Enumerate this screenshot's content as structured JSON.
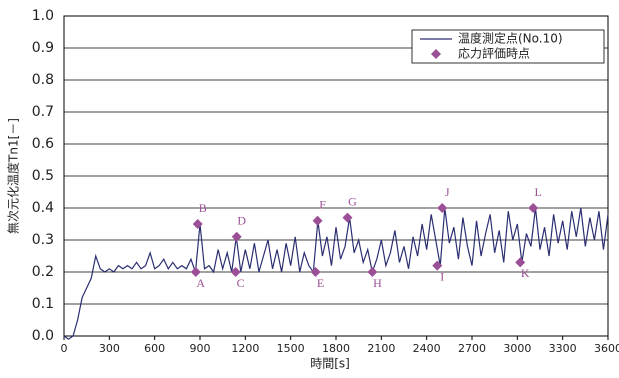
{
  "chart_data": {
    "type": "line",
    "xlabel": "時間[s]",
    "ylabel": "無次元化温度Tn1[－]",
    "xlim": [
      0,
      3600
    ],
    "xticks": [
      0,
      300,
      600,
      900,
      1200,
      1500,
      1800,
      2100,
      2400,
      2700,
      3000,
      3300,
      3600
    ],
    "ylim": [
      0,
      1
    ],
    "yticks": [
      {
        "value": 0,
        "label": "0.0"
      },
      0.1,
      0.2,
      0.3,
      0.4,
      0.5,
      0.6,
      0.7,
      0.8,
      0.9,
      {
        "value": 1,
        "label": "1.0"
      }
    ],
    "grid": true,
    "legend": "upper right",
    "series": [
      {
        "name": "温度測定点(No.10)",
        "color": "#2b2f72",
        "x": [
          0,
          30,
          60,
          90,
          120,
          150,
          180,
          210,
          240,
          270,
          300,
          330,
          360,
          390,
          420,
          450,
          480,
          510,
          540,
          570,
          600,
          630,
          660,
          690,
          720,
          750,
          780,
          810,
          840,
          870,
          900,
          930,
          960,
          990,
          1020,
          1050,
          1080,
          1110,
          1140,
          1170,
          1200,
          1230,
          1260,
          1290,
          1320,
          1350,
          1380,
          1410,
          1440,
          1470,
          1500,
          1530,
          1560,
          1590,
          1620,
          1650,
          1680,
          1710,
          1740,
          1770,
          1800,
          1830,
          1860,
          1890,
          1920,
          1950,
          1980,
          2010,
          2040,
          2070,
          2100,
          2130,
          2160,
          2190,
          2220,
          2250,
          2280,
          2310,
          2340,
          2370,
          2400,
          2430,
          2460,
          2490,
          2520,
          2550,
          2580,
          2610,
          2640,
          2670,
          2700,
          2730,
          2760,
          2790,
          2820,
          2850,
          2880,
          2910,
          2940,
          2970,
          3000,
          3030,
          3060,
          3090,
          3120,
          3150,
          3180,
          3210,
          3240,
          3270,
          3300,
          3330,
          3360,
          3390,
          3420,
          3450,
          3480,
          3510,
          3540,
          3570,
          3600
        ],
        "values": [
          0.0,
          -0.01,
          0.0,
          0.05,
          0.12,
          0.15,
          0.18,
          0.25,
          0.21,
          0.2,
          0.21,
          0.2,
          0.22,
          0.21,
          0.22,
          0.21,
          0.23,
          0.21,
          0.22,
          0.26,
          0.21,
          0.22,
          0.24,
          0.21,
          0.23,
          0.21,
          0.22,
          0.21,
          0.24,
          0.2,
          0.35,
          0.21,
          0.22,
          0.2,
          0.27,
          0.21,
          0.26,
          0.2,
          0.31,
          0.2,
          0.27,
          0.21,
          0.29,
          0.2,
          0.25,
          0.3,
          0.21,
          0.27,
          0.2,
          0.29,
          0.22,
          0.31,
          0.2,
          0.26,
          0.22,
          0.2,
          0.36,
          0.25,
          0.31,
          0.22,
          0.34,
          0.24,
          0.28,
          0.37,
          0.26,
          0.3,
          0.23,
          0.27,
          0.2,
          0.24,
          0.3,
          0.22,
          0.26,
          0.33,
          0.23,
          0.28,
          0.21,
          0.31,
          0.25,
          0.35,
          0.27,
          0.38,
          0.3,
          0.22,
          0.4,
          0.29,
          0.34,
          0.24,
          0.37,
          0.28,
          0.22,
          0.36,
          0.25,
          0.32,
          0.38,
          0.26,
          0.33,
          0.23,
          0.39,
          0.3,
          0.35,
          0.23,
          0.32,
          0.28,
          0.4,
          0.27,
          0.34,
          0.25,
          0.38,
          0.29,
          0.36,
          0.27,
          0.39,
          0.31,
          0.4,
          0.28,
          0.37,
          0.3,
          0.39,
          0.27,
          0.38
        ]
      },
      {
        "name": "応力評価時点",
        "color": "#9b4f96",
        "type": "scatter",
        "x": [
          872,
          885,
          1136,
          1143,
          1665,
          1678,
          1876,
          2041,
          2470,
          2503,
          3019,
          3105
        ],
        "values": [
          0.2,
          0.35,
          0.2,
          0.31,
          0.2,
          0.36,
          0.37,
          0.2,
          0.22,
          0.4,
          0.23,
          0.4
        ],
        "labels": [
          "A",
          "B",
          "C",
          "D",
          "E",
          "F",
          "G",
          "H",
          "I",
          "J",
          "K",
          "L"
        ]
      }
    ]
  }
}
